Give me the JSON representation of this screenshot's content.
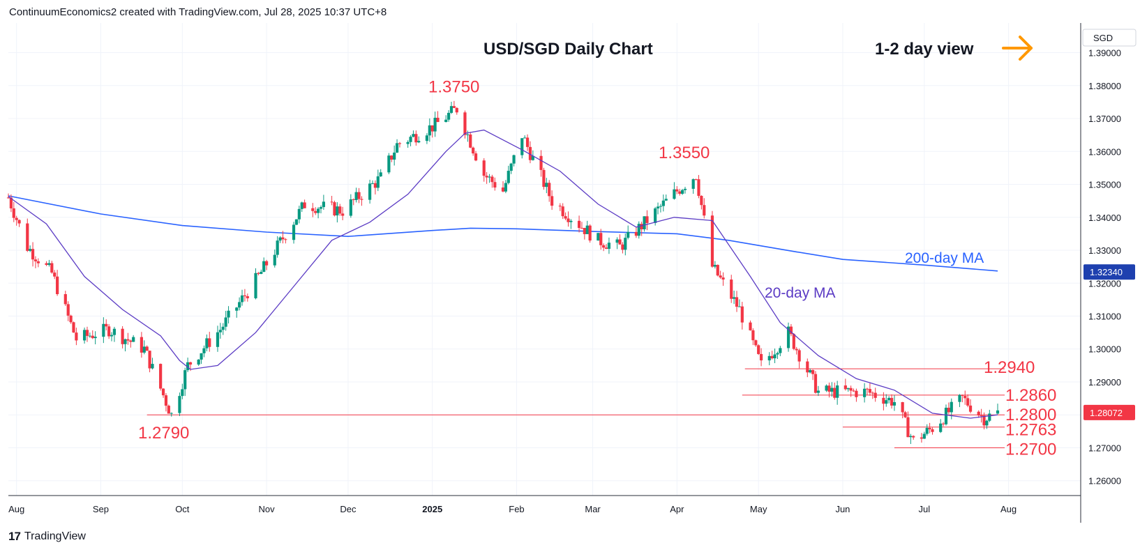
{
  "header": {
    "text": "ContinuumEconomics2 created with TradingView.com, Jul 28, 2025 10:37 UTC+8"
  },
  "footer": {
    "logo_text": "TradingView",
    "logo_mark": "17"
  },
  "currency_label": "SGD",
  "colors": {
    "up": "#089981",
    "down": "#f23645",
    "ma20": "#5b3bc4",
    "ma200": "#2962ff",
    "level_line": "#f23645",
    "price_badge": "#f23645",
    "ma200_badge": "#1e40af",
    "arrow": "#ff9800"
  },
  "chart_data": {
    "type": "candlestick",
    "title": "USD/SGD Daily Chart",
    "view_label": "1-2 day view",
    "view_arrow": "right-arrow-icon",
    "ylim": [
      1.2555,
      1.399
    ],
    "y_ticks": [
      "1.39000",
      "1.38000",
      "1.37000",
      "1.36000",
      "1.35000",
      "1.34000",
      "1.33000",
      "1.32000",
      "1.31000",
      "1.30000",
      "1.29000",
      "1.28000",
      "1.27000",
      "1.26000"
    ],
    "x_ticks": [
      {
        "label": "Aug",
        "date": "2024-08-01"
      },
      {
        "label": "Sep",
        "date": "2024-09-01"
      },
      {
        "label": "Oct",
        "date": "2024-10-01"
      },
      {
        "label": "Nov",
        "date": "2024-11-01"
      },
      {
        "label": "Dec",
        "date": "2024-12-01"
      },
      {
        "label": "2025",
        "date": "2025-01-01",
        "bold": true
      },
      {
        "label": "Feb",
        "date": "2025-02-01"
      },
      {
        "label": "Mar",
        "date": "2025-03-01"
      },
      {
        "label": "Apr",
        "date": "2025-04-01"
      },
      {
        "label": "May",
        "date": "2025-05-01"
      },
      {
        "label": "Jun",
        "date": "2025-06-01"
      },
      {
        "label": "Jul",
        "date": "2025-07-01"
      },
      {
        "label": "Aug",
        "date": "2025-08-01"
      }
    ],
    "current_price": "1.28072",
    "ma200_value": "1.32340",
    "levels": [
      {
        "label": "1.3750",
        "value": 1.375,
        "line": false,
        "start": "2025-01-10"
      },
      {
        "label": "1.3550",
        "value": 1.355,
        "line": false,
        "start": "2025-04-08"
      },
      {
        "label": "1.2940",
        "value": 1.294,
        "line": true,
        "start": "2025-04-26"
      },
      {
        "label": "1.2860",
        "value": 1.286,
        "line": true,
        "start": "2025-04-25"
      },
      {
        "label": "1.2800",
        "value": 1.28,
        "line": true,
        "start": "2024-09-18"
      },
      {
        "label": "1.2763",
        "value": 1.2763,
        "line": true,
        "start": "2025-06-01"
      },
      {
        "label": "1.2700",
        "value": 1.27,
        "line": true,
        "start": "2025-06-20"
      },
      {
        "label": "1.2790",
        "value": 1.279,
        "line": false,
        "start": "2024-09-28"
      }
    ],
    "series": [
      {
        "name": "20-day MA",
        "type": "line",
        "points": [
          [
            "2024-07-29",
            1.3463
          ],
          [
            "2024-08-12",
            1.338
          ],
          [
            "2024-08-26",
            1.322
          ],
          [
            "2024-09-09",
            1.312
          ],
          [
            "2024-09-23",
            1.304
          ],
          [
            "2024-09-30",
            1.2965
          ],
          [
            "2024-10-04",
            1.2938
          ],
          [
            "2024-10-14",
            1.295
          ],
          [
            "2024-10-28",
            1.305
          ],
          [
            "2024-11-11",
            1.319
          ],
          [
            "2024-11-25",
            1.333
          ],
          [
            "2024-12-09",
            1.3385
          ],
          [
            "2024-12-23",
            1.347
          ],
          [
            "2025-01-06",
            1.36
          ],
          [
            "2025-01-13",
            1.3655
          ],
          [
            "2025-01-20",
            1.3665
          ],
          [
            "2025-02-03",
            1.3605
          ],
          [
            "2025-02-17",
            1.354
          ],
          [
            "2025-03-03",
            1.344
          ],
          [
            "2025-03-17",
            1.337
          ],
          [
            "2025-03-31",
            1.34
          ],
          [
            "2025-04-14",
            1.339
          ],
          [
            "2025-04-28",
            1.322
          ],
          [
            "2025-05-09",
            1.308
          ],
          [
            "2025-05-23",
            1.298
          ],
          [
            "2025-06-06",
            1.291
          ],
          [
            "2025-06-20",
            1.2875
          ],
          [
            "2025-07-04",
            1.2805
          ],
          [
            "2025-07-18",
            1.279
          ],
          [
            "2025-07-28",
            1.28
          ]
        ]
      },
      {
        "name": "200-day MA",
        "type": "line",
        "points": [
          [
            "2024-07-29",
            1.3465
          ],
          [
            "2024-09-01",
            1.341
          ],
          [
            "2024-10-01",
            1.3375
          ],
          [
            "2024-11-01",
            1.3355
          ],
          [
            "2024-12-01",
            1.3342
          ],
          [
            "2025-01-01",
            1.336
          ],
          [
            "2025-01-15",
            1.3367
          ],
          [
            "2025-02-01",
            1.3365
          ],
          [
            "2025-03-01",
            1.3357
          ],
          [
            "2025-04-01",
            1.335
          ],
          [
            "2025-04-20",
            1.333
          ],
          [
            "2025-05-15",
            1.3295
          ],
          [
            "2025-06-01",
            1.3272
          ],
          [
            "2025-07-01",
            1.3255
          ],
          [
            "2025-07-28",
            1.3237
          ]
        ]
      },
      {
        "name": "USD/SGD",
        "type": "ohlc",
        "anchors": [
          [
            "2024-07-29",
            1.346
          ],
          [
            "2024-08-05",
            1.331
          ],
          [
            "2024-08-14",
            1.323
          ],
          [
            "2024-08-23",
            1.303
          ],
          [
            "2024-09-04",
            1.306
          ],
          [
            "2024-09-17",
            1.3
          ],
          [
            "2024-09-27",
            1.28
          ],
          [
            "2024-10-03",
            1.295
          ],
          [
            "2024-10-15",
            1.306
          ],
          [
            "2024-10-29",
            1.322
          ],
          [
            "2024-11-08",
            1.335
          ],
          [
            "2024-11-15",
            1.344
          ],
          [
            "2024-11-29",
            1.342
          ],
          [
            "2024-12-13",
            1.352
          ],
          [
            "2024-12-19",
            1.362
          ],
          [
            "2025-01-02",
            1.368
          ],
          [
            "2025-01-10",
            1.373
          ],
          [
            "2025-01-20",
            1.353
          ],
          [
            "2025-01-27",
            1.348
          ],
          [
            "2025-02-03",
            1.365
          ],
          [
            "2025-02-14",
            1.345
          ],
          [
            "2025-03-03",
            1.333
          ],
          [
            "2025-03-11",
            1.331
          ],
          [
            "2025-04-01",
            1.348
          ],
          [
            "2025-04-08",
            1.353
          ],
          [
            "2025-04-14",
            1.325
          ],
          [
            "2025-04-24",
            1.312
          ],
          [
            "2025-05-02",
            1.295
          ],
          [
            "2025-05-12",
            1.305
          ],
          [
            "2025-05-23",
            1.287
          ],
          [
            "2025-06-10",
            1.287
          ],
          [
            "2025-06-20",
            1.284
          ],
          [
            "2025-06-27",
            1.272
          ],
          [
            "2025-07-04",
            1.276
          ],
          [
            "2025-07-15",
            1.285
          ],
          [
            "2025-07-23",
            1.279
          ],
          [
            "2025-07-28",
            1.2807
          ]
        ]
      }
    ]
  }
}
